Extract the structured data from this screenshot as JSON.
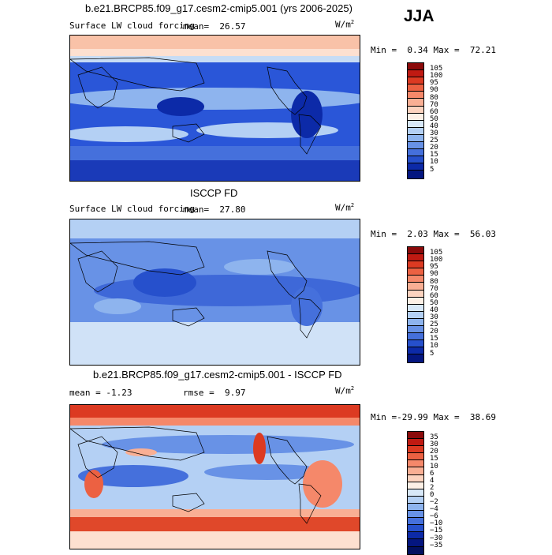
{
  "season": "JJA",
  "panels": [
    {
      "title": "b.e21.BRCP85.f09_g17.cesm2-cmip5.001 (yrs 2006-2025)",
      "variable": "Surface LW cloud forcing",
      "stat_label": "mean=",
      "stat_value": "26.57",
      "units": "W/m",
      "units_exp": "2",
      "min_label": "Min =",
      "min_value": "0.34",
      "max_label": "Max =",
      "max_value": "72.21",
      "colorbar_labels": [
        "105",
        "100",
        "95",
        "90",
        "80",
        "70",
        "60",
        "50",
        "40",
        "30",
        "25",
        "20",
        "15",
        "10",
        "5"
      ],
      "colorbar_colors": [
        "#8b0a0a",
        "#c01a12",
        "#dc3a22",
        "#ec6142",
        "#f5886a",
        "#f9af94",
        "#fcd3bf",
        "#fdf0e6",
        "#d8e8f8",
        "#b4d0f4",
        "#8eb4ee",
        "#6892e6",
        "#4570dc",
        "#2650cc",
        "#0c2aa8",
        "#041680"
      ]
    },
    {
      "title": "ISCCP FD",
      "variable": "Surface LW cloud forcing",
      "stat_label": "mean=",
      "stat_value": "27.80",
      "units": "W/m",
      "units_exp": "2",
      "min_label": "Min =",
      "min_value": "2.03",
      "max_label": "Max =",
      "max_value": "56.03",
      "colorbar_labels": [
        "105",
        "100",
        "95",
        "90",
        "80",
        "70",
        "60",
        "50",
        "40",
        "30",
        "25",
        "20",
        "15",
        "10",
        "5"
      ],
      "colorbar_colors": [
        "#8b0a0a",
        "#c01a12",
        "#dc3a22",
        "#ec6142",
        "#f5886a",
        "#f9af94",
        "#fcd3bf",
        "#fdf0e6",
        "#d8e8f8",
        "#b4d0f4",
        "#8eb4ee",
        "#6892e6",
        "#4570dc",
        "#2650cc",
        "#0c2aa8",
        "#041680"
      ]
    },
    {
      "title": "b.e21.BRCP85.f09_g17.cesm2-cmip5.001 - ISCCP FD",
      "mean_label": "mean =",
      "mean_value": "-1.23",
      "rmse_label": "rmse =",
      "rmse_value": "9.97",
      "units": "W/m",
      "units_exp": "2",
      "min_label": "Min =",
      "min_value": "-29.99",
      "max_label": "Max =",
      "max_value": "38.69",
      "colorbar_labels": [
        "35",
        "30",
        "20",
        "15",
        "10",
        "6",
        "4",
        "2",
        "0",
        "−2",
        "−4",
        "−6",
        "−10",
        "−15",
        "−30",
        "−35"
      ],
      "colorbar_colors": [
        "#8b0a0a",
        "#c01a12",
        "#dc3a22",
        "#ec6142",
        "#f5886a",
        "#f9af94",
        "#fcd3bf",
        "#fdf0e6",
        "#d8e8f8",
        "#b4d0f4",
        "#8eb4ee",
        "#6892e6",
        "#4570dc",
        "#2650cc",
        "#0c2aa8",
        "#041680",
        "#021060"
      ]
    }
  ]
}
